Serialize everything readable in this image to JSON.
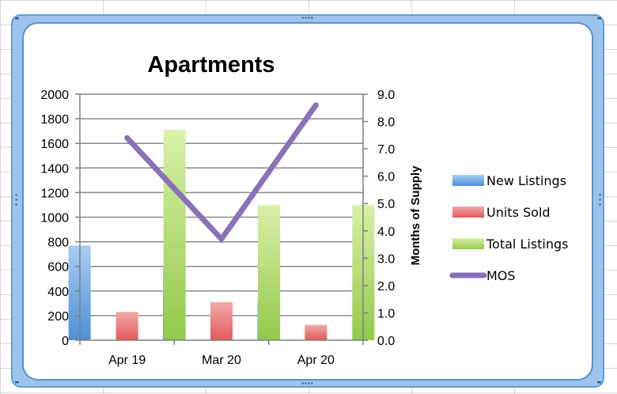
{
  "chart_data": {
    "type": "bar",
    "title": "Apartments",
    "categories": [
      "Apr 19",
      "Mar 20",
      "Apr 20"
    ],
    "y_left": {
      "min": 0,
      "max": 2000,
      "ticks": [
        "0",
        "200",
        "400",
        "600",
        "800",
        "1000",
        "1200",
        "1400",
        "1600",
        "1800",
        "2000"
      ]
    },
    "y_right": {
      "label": "Months of Supply",
      "min": 0,
      "max": 9,
      "ticks": [
        "0.0",
        "1.0",
        "2.0",
        "3.0",
        "4.0",
        "5.0",
        "6.0",
        "7.0",
        "8.0",
        "9.0"
      ]
    },
    "series": [
      {
        "name": "New Listings",
        "type": "bar",
        "axis": "left",
        "values": [
          770,
          600,
          320
        ],
        "color": "#5b9be0"
      },
      {
        "name": "Units Sold",
        "type": "bar",
        "axis": "left",
        "values": [
          230,
          310,
          125
        ],
        "color": "#e96d6d"
      },
      {
        "name": "Total Listings",
        "type": "bar",
        "axis": "left",
        "values": [
          1710,
          1100,
          1100
        ],
        "color": "#9ed052"
      },
      {
        "name": "MOS",
        "type": "line",
        "axis": "right",
        "values": [
          7.4,
          3.7,
          8.6
        ],
        "color": "#8a72b8"
      }
    ],
    "grid": true,
    "legend": "right"
  }
}
